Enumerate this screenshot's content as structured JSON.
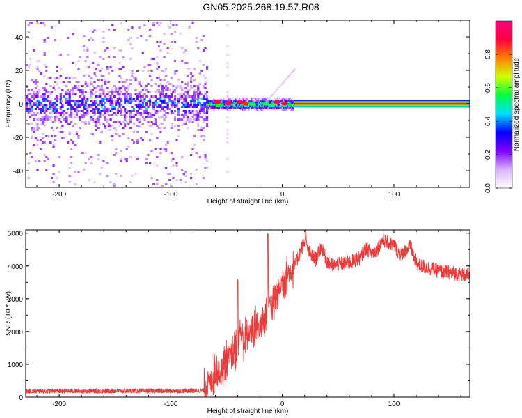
{
  "title": "GN05.2025.268.19.57.R08",
  "chart_data": [
    {
      "type": "heatmap",
      "xlabel": "Height of straight line (km)",
      "ylabel": "Frequency (Hz)",
      "xlim": [
        -230,
        168
      ],
      "ylim": [
        -50,
        50
      ],
      "xticks": [
        -200,
        -100,
        0,
        100
      ],
      "yticks": [
        -40,
        -20,
        0,
        20,
        40
      ],
      "colorbar": {
        "label": "Normalized spectral amplitude",
        "range": [
          0,
          1
        ],
        "ticks": [
          "0.0",
          "0.2",
          "0.4",
          "0.6",
          "0.8"
        ],
        "tick_values": [
          0.0,
          0.2,
          0.4,
          0.6,
          0.8
        ],
        "colors": [
          "#ffffff",
          "#d9b3ff",
          "#8000ff",
          "#0000ff",
          "#00e0ff",
          "#00ff40",
          "#d0ff00",
          "#ff8000",
          "#ff0040",
          "#ff0080"
        ]
      },
      "regions": [
        {
          "name": "noise",
          "x_range": [
            -230,
            -68
          ],
          "band_halfwidth_hz": 50
        },
        {
          "name": "onset",
          "x_range": [
            -68,
            10
          ],
          "band_halfwidth_hz": 3
        },
        {
          "name": "carrier",
          "x_range": [
            10,
            168
          ],
          "center_hz": 0,
          "halfwidth_hz": 2
        }
      ]
    },
    {
      "type": "line",
      "xlabel": "Height of straight line (km)",
      "ylabel": "SNR (10 * v/v)",
      "xlim": [
        -230,
        168
      ],
      "ylim": [
        0,
        5100
      ],
      "xticks": [
        -200,
        -100,
        0,
        100
      ],
      "yticks": [
        0,
        1000,
        2000,
        3000,
        4000,
        5000
      ],
      "color": "#ef3a3a",
      "series": [
        {
          "name": "SNR",
          "x": [
            -230,
            -200,
            -150,
            -100,
            -70,
            -68,
            -63,
            -60,
            -55,
            -50,
            -45,
            -40,
            -38,
            -35,
            -30,
            -25,
            -20,
            -15,
            -13,
            -10,
            -5,
            0,
            5,
            10,
            15,
            20,
            25,
            30,
            35,
            40,
            45,
            50,
            60,
            70,
            75,
            80,
            85,
            90,
            95,
            100,
            105,
            110,
            115,
            120,
            130,
            140,
            150,
            160,
            168
          ],
          "values": [
            180,
            185,
            190,
            190,
            200,
            350,
            500,
            900,
            700,
            1150,
            1300,
            1500,
            2100,
            1700,
            1950,
            2100,
            2150,
            2400,
            3200,
            2700,
            3050,
            3550,
            3800,
            3900,
            4350,
            4750,
            4350,
            4200,
            4600,
            4150,
            4000,
            4050,
            4100,
            4250,
            4550,
            4400,
            4500,
            4800,
            4700,
            4650,
            4350,
            4450,
            4600,
            4050,
            3950,
            3850,
            3800,
            3750,
            3700
          ]
        }
      ],
      "spikes": [
        {
          "x": -40,
          "value": 3650
        },
        {
          "x": -13,
          "value": 5000
        },
        {
          "x": 21,
          "value": 5100
        }
      ]
    }
  ]
}
